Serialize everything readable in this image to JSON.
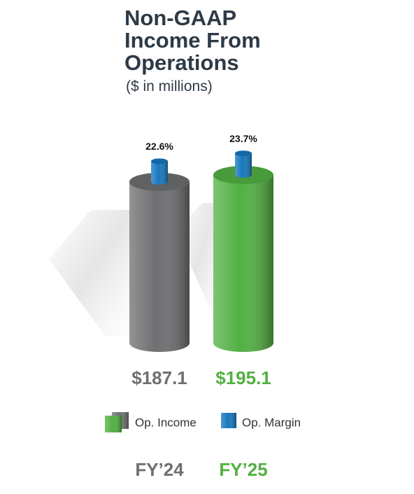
{
  "chart_data": {
    "type": "cylinder",
    "title": "Non-GAAP Income From Operations",
    "subtitle": "($ in millions)",
    "categories": [
      "FY’24",
      "FY’25"
    ],
    "series": [
      {
        "name": "Op. Income",
        "colors": [
          "#6e6f71",
          "#52b043"
        ],
        "values": [
          187.1,
          195.1
        ],
        "value_labels": [
          "$187.1",
          "$195.1"
        ]
      },
      {
        "name": "Op. Margin",
        "color": "#1677bd",
        "values": [
          22.6,
          23.7
        ],
        "value_labels": [
          "22.6%",
          "23.7%"
        ]
      }
    ]
  }
}
